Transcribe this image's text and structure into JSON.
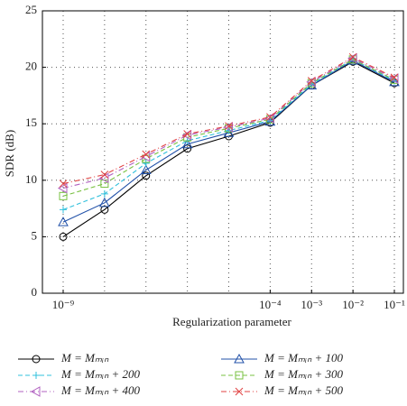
{
  "chart_data": {
    "type": "line",
    "x_label": "Regularization parameter",
    "y_label": "SDR (dB)",
    "categories": [
      "10⁻⁹",
      null,
      null,
      null,
      null,
      "10⁻⁴",
      "10⁻³",
      "10⁻²",
      "10⁻¹"
    ],
    "ylim": [
      0,
      25
    ],
    "yticks": [
      0,
      5,
      10,
      15,
      20,
      25
    ],
    "grid": true,
    "series": [
      {
        "name": "M = Mₘᵢₙ",
        "color": "#000000",
        "marker": "circle",
        "dash": "solid",
        "values": [
          5.0,
          7.4,
          10.4,
          12.8,
          13.9,
          15.1,
          18.4,
          20.5,
          18.6
        ]
      },
      {
        "name": "M = Mₘᵢₙ + 100",
        "color": "#2050a8",
        "marker": "triangle-up",
        "dash": "solid",
        "values": [
          6.3,
          8.0,
          10.9,
          13.2,
          14.2,
          15.2,
          18.4,
          20.6,
          18.7
        ]
      },
      {
        "name": "M = Mₘᵢₙ + 200",
        "color": "#30c0dc",
        "marker": "plus",
        "dash": "dashed",
        "values": [
          7.4,
          8.8,
          11.5,
          13.5,
          14.4,
          15.3,
          18.5,
          20.7,
          18.8
        ]
      },
      {
        "name": "M = Mₘᵢₙ + 300",
        "color": "#78c040",
        "marker": "square",
        "dash": "dashed",
        "values": [
          8.6,
          9.7,
          11.9,
          13.8,
          14.6,
          15.4,
          18.6,
          20.7,
          18.9
        ]
      },
      {
        "name": "M = Mₘᵢₙ + 400",
        "color": "#b060c0",
        "marker": "triangle-left",
        "dash": "dashdot",
        "values": [
          9.3,
          10.2,
          12.1,
          14.0,
          14.7,
          15.5,
          18.7,
          20.8,
          19.0
        ]
      },
      {
        "name": "M = Mₘᵢₙ + 500",
        "color": "#e04040",
        "marker": "x",
        "dash": "dashdot",
        "values": [
          9.7,
          10.5,
          12.3,
          14.1,
          14.8,
          15.6,
          18.8,
          20.9,
          19.1
        ]
      }
    ]
  }
}
